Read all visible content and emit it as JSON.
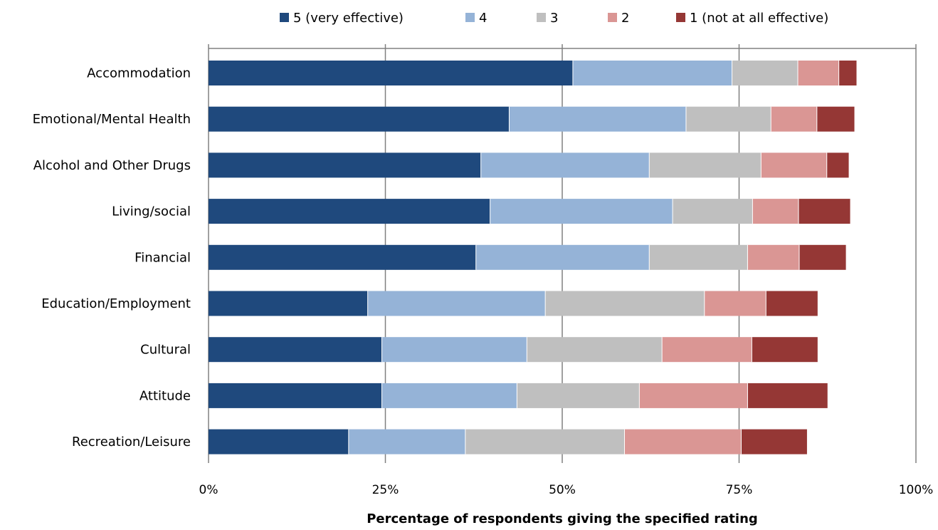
{
  "chart_data": {
    "type": "bar",
    "orientation": "horizontal",
    "stacked": true,
    "title": "",
    "xlabel": "Percentage of respondents giving the specified rating",
    "ylabel": "",
    "xlim": [
      0,
      100
    ],
    "x_ticks": [
      0,
      25,
      50,
      75,
      100
    ],
    "x_tick_labels": [
      "0%",
      "25%",
      "50%",
      "75%",
      "100%"
    ],
    "grid": "vertical",
    "legend_position": "top",
    "categories": [
      "Accommodation",
      "Emotional/Mental Health",
      "Alcohol and Other Drugs",
      "Living/social",
      "Financial",
      "Education/Employment",
      "Cultural",
      "Attitude",
      "Recreation/Leisure"
    ],
    "series": [
      {
        "name": "5 (very effective)",
        "color": "#1f497d",
        "values": [
          51.5,
          42.5,
          38.5,
          39.8,
          37.8,
          22.5,
          24.5,
          24.5,
          19.8
        ]
      },
      {
        "name": "4",
        "color": "#95b3d7",
        "values": [
          22.5,
          25.0,
          23.8,
          25.8,
          24.5,
          25.1,
          20.5,
          19.1,
          16.5
        ]
      },
      {
        "name": "3",
        "color": "#bfbfbf",
        "values": [
          9.3,
          12.0,
          15.8,
          11.3,
          13.9,
          22.5,
          19.1,
          17.3,
          22.5
        ]
      },
      {
        "name": "2",
        "color": "#da9694",
        "values": [
          5.8,
          6.5,
          9.3,
          6.5,
          7.3,
          8.7,
          12.7,
          15.3,
          16.5
        ]
      },
      {
        "name": "1 (not at all effective)",
        "color": "#953735",
        "values": [
          2.5,
          5.3,
          3.1,
          7.3,
          6.6,
          7.3,
          9.3,
          11.3,
          9.3
        ]
      }
    ]
  }
}
